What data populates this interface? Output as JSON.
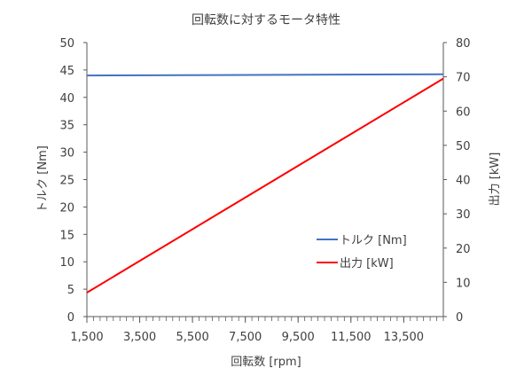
{
  "chart_data": {
    "type": "line",
    "title": "回転数に対するモータ特性",
    "xlabel": "回転数 [rpm]",
    "ylabel": "トルク [Nm]",
    "y2label": "出力 [kW]",
    "xlim": [
      1500,
      15000
    ],
    "ylim": [
      0,
      50
    ],
    "y2lim": [
      0,
      80
    ],
    "x_ticks": [
      "1,500",
      "3,500",
      "5,500",
      "7,500",
      "9,500",
      "11,500",
      "13,500"
    ],
    "x_tick_values": [
      1500,
      3500,
      5500,
      7500,
      9500,
      11500,
      13500
    ],
    "y_ticks": [
      "0",
      "5",
      "10",
      "15",
      "20",
      "25",
      "30",
      "35",
      "40",
      "45",
      "50"
    ],
    "y2_ticks": [
      "0",
      "10",
      "20",
      "30",
      "40",
      "50",
      "60",
      "70",
      "80"
    ],
    "grid": false,
    "legend_position": "lower-right",
    "series": [
      {
        "name": "トルク [Nm]",
        "axis": "left",
        "color": "#4472C4",
        "x": [
          1500,
          15000
        ],
        "values": [
          44,
          44.2
        ]
      },
      {
        "name": "出力 [kW]",
        "axis": "right",
        "color": "#FF0000",
        "x": [
          1500,
          15000
        ],
        "values": [
          7,
          69.5
        ]
      }
    ]
  }
}
